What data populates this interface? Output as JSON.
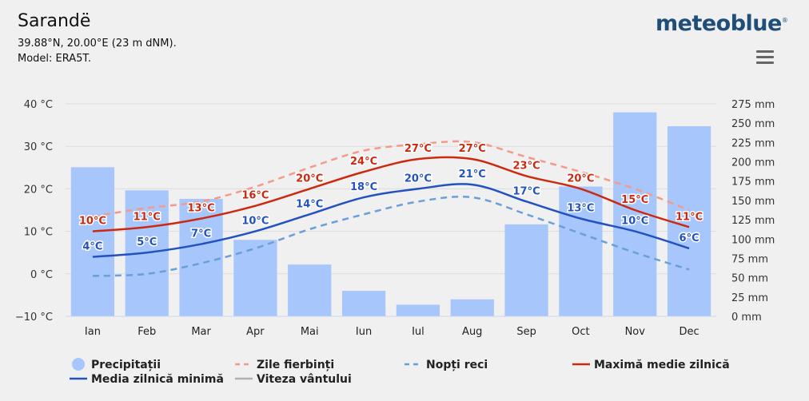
{
  "header": {
    "location": "Sarandë",
    "coords": "39.88°N, 20.00°E (23 m dNM).",
    "model": "Model: ERA5T.",
    "brand": "meteoblue",
    "brand_mark": "®"
  },
  "menu": {
    "icon": "hamburger-menu-icon"
  },
  "colors": {
    "precip": "#a7c6fb",
    "hot_days": "#f59a8a",
    "cold_nights": "#6a9fd9",
    "max": "#cc2a10",
    "min": "#2352c0",
    "wind": "#b0b0b0"
  },
  "chart_data": {
    "type": "bar+line",
    "categories": [
      "Ian",
      "Feb",
      "Mar",
      "Apr",
      "Mai",
      "Iun",
      "Iul",
      "Aug",
      "Sep",
      "Oct",
      "Nov",
      "Dec"
    ],
    "y_left": {
      "unit": "°C",
      "min": -10,
      "max": 40,
      "ticks": [
        40,
        30,
        20,
        10,
        0,
        -10
      ],
      "tick_labels": [
        "40 °C",
        "30 °C",
        "20 °C",
        "10 °C",
        "0 °C",
        "−10 °C"
      ]
    },
    "y_right": {
      "unit": "mm",
      "min": 0,
      "max": 275,
      "ticks": [
        275,
        250,
        225,
        200,
        175,
        150,
        125,
        100,
        75,
        50,
        25,
        0
      ],
      "tick_labels": [
        "275 mm",
        "250 mm",
        "225 mm",
        "200 mm",
        "175 mm",
        "150 mm",
        "125 mm",
        "100 mm",
        "75 mm",
        "50 mm",
        "25 mm",
        "0 mm"
      ]
    },
    "series": [
      {
        "name": "Precipitații",
        "type": "bar",
        "axis": "right",
        "values": [
          193,
          163,
          152,
          99,
          67,
          33,
          15,
          22,
          119,
          168,
          264,
          246
        ]
      },
      {
        "name": "Zile fierbinți",
        "type": "line",
        "style": "dashed",
        "axis": "left",
        "values": [
          13.5,
          15.5,
          17,
          20.5,
          25,
          29,
          30.5,
          31,
          27.5,
          24,
          20,
          15
        ]
      },
      {
        "name": "Nopți reci",
        "type": "line",
        "style": "dashed",
        "axis": "left",
        "values": [
          -0.5,
          0,
          2.5,
          6,
          10.5,
          14,
          17,
          18,
          14,
          9.5,
          5,
          1
        ]
      },
      {
        "name": "Maximă medie zilnică",
        "type": "line",
        "style": "solid",
        "axis": "left",
        "values": [
          10,
          11,
          13,
          16,
          20,
          24,
          27,
          27,
          23,
          20,
          15,
          11
        ],
        "labels": [
          "10°C",
          "11°C",
          "13°C",
          "16°C",
          "20°C",
          "24°C",
          "27°C",
          "27°C",
          "23°C",
          "20°C",
          "15°C",
          "11°C"
        ]
      },
      {
        "name": "Media zilnică minimă",
        "type": "line",
        "style": "solid",
        "axis": "left",
        "values": [
          4,
          5,
          7,
          10,
          14,
          18,
          20,
          21,
          17,
          13,
          10,
          6
        ],
        "labels": [
          "4°C",
          "5°C",
          "7°C",
          "10°C",
          "14°C",
          "18°C",
          "20°C",
          "21°C",
          "17°C",
          "13°C",
          "10°C",
          "6°C"
        ]
      }
    ],
    "legend": [
      {
        "name": "Precipitații",
        "symbol": "circle",
        "enabled": true
      },
      {
        "name": "Zile fierbinți",
        "symbol": "dash",
        "enabled": true
      },
      {
        "name": "Nopți reci",
        "symbol": "dash",
        "enabled": true
      },
      {
        "name": "Maximă medie zilnică",
        "symbol": "line",
        "enabled": true
      },
      {
        "name": "Media zilnică minimă",
        "symbol": "line",
        "enabled": true
      },
      {
        "name": "Viteza vântului",
        "symbol": "line",
        "enabled": false
      }
    ]
  }
}
